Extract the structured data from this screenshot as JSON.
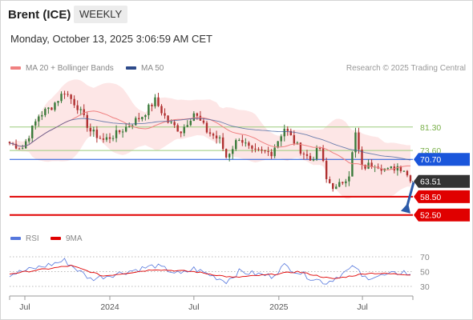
{
  "header": {
    "title": "Brent (ICE)",
    "interval_label": "WEEKLY",
    "datetime": "Monday, October 13, 2025 3:06:59 AM CET",
    "credit": "Research © 2025 Trading Central"
  },
  "legend": {
    "ma20_label": "MA 20 + Bollinger Bands",
    "ma50_label": "MA 50",
    "rsi_label": "RSI",
    "rsi_ma_label": "9MA"
  },
  "colors": {
    "candle_up": "#3a7a3a",
    "candle_down": "#b03030",
    "ma20": "#f08080",
    "bollinger_fill": "#fde2e2",
    "ma50": "#3a5a9a",
    "support": "#e00000",
    "current_price": "#333333",
    "pivot": "#1a56db",
    "resistance_line": "#9ccc7a",
    "resistance_text": "#7ab04a",
    "rsi": "#5577dd",
    "rsi_ma": "#e00000"
  },
  "chart_data": [
    {
      "type": "candlestick",
      "title": "Brent (ICE)",
      "interval": "WEEKLY",
      "x_tick_labels": [
        "Jul",
        "2024",
        "Jul",
        "2025",
        "Jul"
      ],
      "x_tick_dates": [
        "2023-07-01",
        "2024-01-01",
        "2024-07-01",
        "2025-01-01",
        "2025-07-01"
      ],
      "x_range": [
        "2023-05-29",
        "2025-10-13"
      ],
      "ylim": [
        48.5,
        98
      ],
      "current_price": 63.51,
      "levels": [
        {
          "value": 81.3,
          "label": "81.30",
          "kind": "resistance"
        },
        {
          "value": 73.6,
          "label": "73.60",
          "kind": "resistance"
        },
        {
          "value": 70.7,
          "label": "70.70",
          "kind": "pivot"
        },
        {
          "value": 58.5,
          "label": "58.50",
          "kind": "support"
        },
        {
          "value": 52.5,
          "label": "52.50",
          "kind": "support"
        }
      ],
      "forecast_arrow": {
        "direction": "down",
        "target": 52.5
      },
      "close_keypoints": [
        {
          "date": "2023-05-29",
          "close": 76
        },
        {
          "date": "2023-06-26",
          "close": 74.5
        },
        {
          "date": "2023-07-31",
          "close": 85
        },
        {
          "date": "2023-08-28",
          "close": 88
        },
        {
          "date": "2023-09-25",
          "close": 93
        },
        {
          "date": "2023-10-23",
          "close": 88
        },
        {
          "date": "2023-11-20",
          "close": 80
        },
        {
          "date": "2023-12-18",
          "close": 77
        },
        {
          "date": "2024-01-15",
          "close": 79
        },
        {
          "date": "2024-02-12",
          "close": 82
        },
        {
          "date": "2024-03-11",
          "close": 85
        },
        {
          "date": "2024-04-08",
          "close": 90
        },
        {
          "date": "2024-05-06",
          "close": 83
        },
        {
          "date": "2024-06-03",
          "close": 80
        },
        {
          "date": "2024-07-01",
          "close": 86
        },
        {
          "date": "2024-07-29",
          "close": 80
        },
        {
          "date": "2024-08-26",
          "close": 77
        },
        {
          "date": "2024-09-09",
          "close": 71.5
        },
        {
          "date": "2024-10-07",
          "close": 78
        },
        {
          "date": "2024-11-04",
          "close": 73
        },
        {
          "date": "2024-12-16",
          "close": 73
        },
        {
          "date": "2025-01-13",
          "close": 81
        },
        {
          "date": "2025-02-10",
          "close": 75
        },
        {
          "date": "2025-03-10",
          "close": 70.5
        },
        {
          "date": "2025-03-31",
          "close": 74.5
        },
        {
          "date": "2025-04-14",
          "close": 64
        },
        {
          "date": "2025-05-05",
          "close": 61
        },
        {
          "date": "2025-06-02",
          "close": 66
        },
        {
          "date": "2025-06-16",
          "close": 79
        },
        {
          "date": "2025-06-30",
          "close": 68
        },
        {
          "date": "2025-07-28",
          "close": 69.5
        },
        {
          "date": "2025-08-25",
          "close": 67
        },
        {
          "date": "2025-09-15",
          "close": 68.5
        },
        {
          "date": "2025-09-29",
          "close": 67.5
        },
        {
          "date": "2025-10-13",
          "close": 63.51
        }
      ]
    },
    {
      "type": "line",
      "title": "RSI",
      "y_tick_labels": [
        "70",
        "50",
        "30"
      ],
      "y_ticks": [
        70,
        50,
        30
      ],
      "ylim": [
        20,
        80
      ],
      "series": [
        {
          "name": "RSI",
          "keypoints": [
            {
              "date": "2023-05-29",
              "value": 46
            },
            {
              "date": "2023-08-28",
              "value": 60
            },
            {
              "date": "2023-09-25",
              "value": 65
            },
            {
              "date": "2023-11-20",
              "value": 40
            },
            {
              "date": "2024-01-15",
              "value": 47
            },
            {
              "date": "2024-04-08",
              "value": 58
            },
            {
              "date": "2024-06-03",
              "value": 46
            },
            {
              "date": "2024-07-01",
              "value": 54
            },
            {
              "date": "2024-09-09",
              "value": 37
            },
            {
              "date": "2024-10-07",
              "value": 50
            },
            {
              "date": "2024-12-16",
              "value": 44
            },
            {
              "date": "2025-01-13",
              "value": 58
            },
            {
              "date": "2025-03-10",
              "value": 42
            },
            {
              "date": "2025-04-14",
              "value": 35
            },
            {
              "date": "2025-06-16",
              "value": 57
            },
            {
              "date": "2025-06-30",
              "value": 42
            },
            {
              "date": "2025-08-25",
              "value": 45
            },
            {
              "date": "2025-09-29",
              "value": 50
            },
            {
              "date": "2025-10-13",
              "value": 44
            }
          ]
        },
        {
          "name": "9MA",
          "keypoints": [
            {
              "date": "2023-05-29",
              "value": 47
            },
            {
              "date": "2023-10-09",
              "value": 58
            },
            {
              "date": "2023-12-18",
              "value": 44
            },
            {
              "date": "2024-04-08",
              "value": 53
            },
            {
              "date": "2024-07-01",
              "value": 50
            },
            {
              "date": "2024-09-23",
              "value": 42
            },
            {
              "date": "2024-12-16",
              "value": 46
            },
            {
              "date": "2025-02-10",
              "value": 50
            },
            {
              "date": "2025-04-28",
              "value": 40
            },
            {
              "date": "2025-07-14",
              "value": 48
            },
            {
              "date": "2025-10-13",
              "value": 46
            }
          ]
        }
      ]
    }
  ]
}
